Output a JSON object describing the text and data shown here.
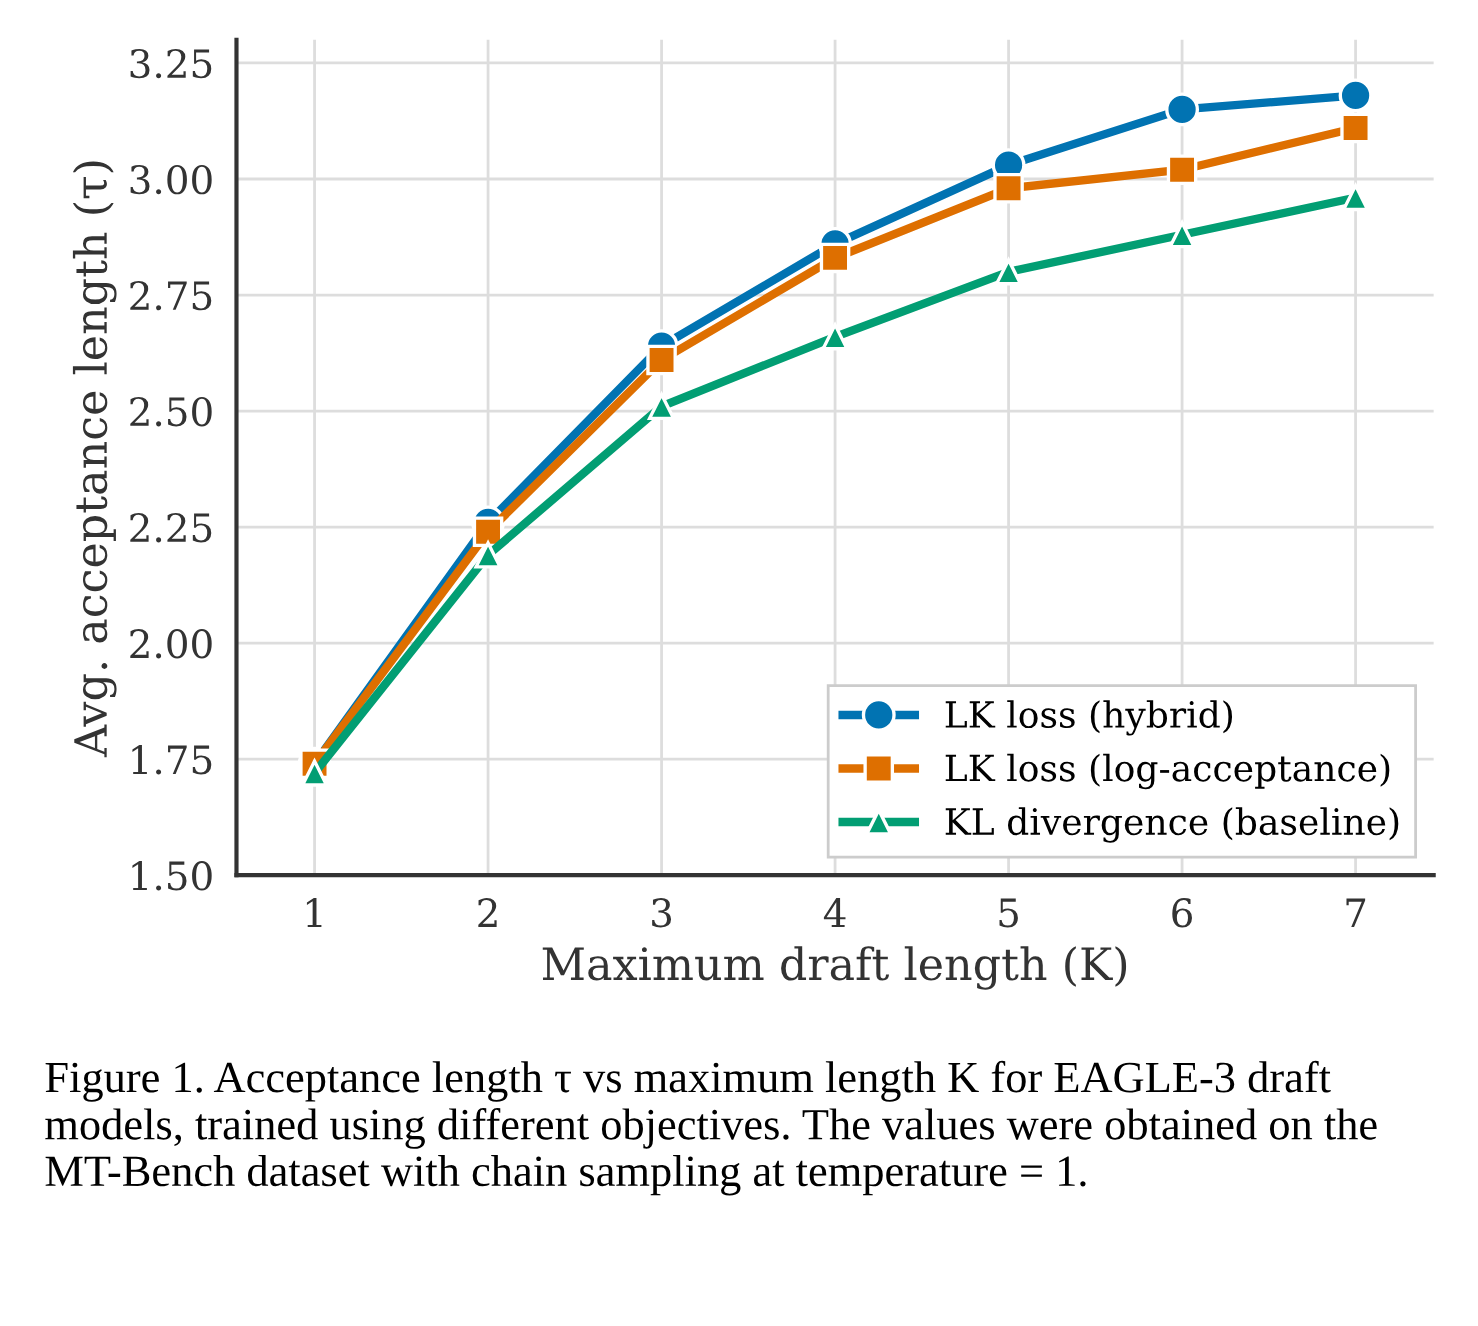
{
  "chart_data": {
    "type": "line",
    "xlabel": "Maximum draft length (K)",
    "ylabel": "Avg. acceptance length (τ)",
    "x": [
      1,
      2,
      3,
      4,
      5,
      6,
      7
    ],
    "series": [
      {
        "name": "LK loss (hybrid)",
        "color": "#0173b2",
        "marker": "circle",
        "values": [
          1.74,
          2.26,
          2.64,
          2.86,
          3.03,
          3.15,
          3.18
        ]
      },
      {
        "name": "LK loss (log-acceptance)",
        "color": "#de6f00",
        "marker": "square",
        "values": [
          1.74,
          2.24,
          2.61,
          2.83,
          2.98,
          3.02,
          3.11
        ]
      },
      {
        "name": "KL divergence (baseline)",
        "color": "#029e73",
        "marker": "triangle",
        "values": [
          1.72,
          2.19,
          2.51,
          2.66,
          2.8,
          2.88,
          2.96
        ]
      }
    ],
    "xlim": [
      0.55,
      7.45
    ],
    "xticks": [
      1,
      2,
      3,
      4,
      5,
      6,
      7
    ],
    "ylim": [
      1.5,
      3.3
    ],
    "yticks": [
      {
        "value": 1.5,
        "label": "1.50"
      },
      {
        "value": 1.75,
        "label": "1.75"
      },
      {
        "value": 2.0,
        "label": "2.00"
      },
      {
        "value": 2.25,
        "label": "2.25"
      },
      {
        "value": 2.5,
        "label": "2.50"
      },
      {
        "value": 2.75,
        "label": "2.75"
      },
      {
        "value": 3.0,
        "label": "3.00"
      },
      {
        "value": 3.25,
        "label": "3.25"
      }
    ],
    "grid": true,
    "legend": "bottom right",
    "line_style": "solid",
    "annotations": [
      "Figure 1. Acceptance length τ vs maximum length K for EAGLE-3 draft models, trained using different objectives. The values were obtained on the MT-Bench dataset with chain sampling at temperature = 1."
    ]
  }
}
